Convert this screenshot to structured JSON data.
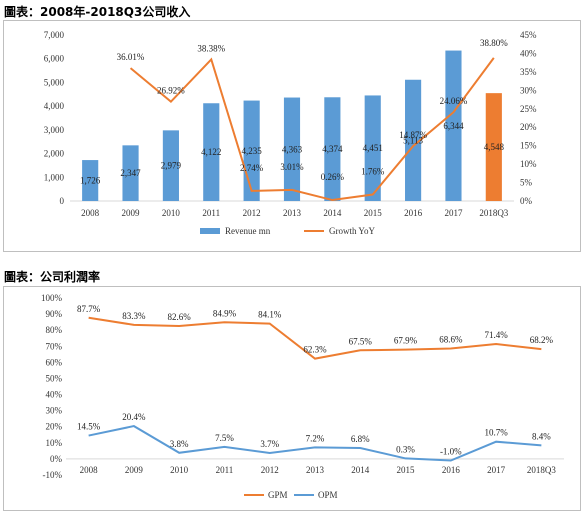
{
  "captions": {
    "chart1": "圖表：2008年-2018Q3公司收入",
    "chart2": "圖表：公司利潤率"
  },
  "chart_data": [
    {
      "type": "bar",
      "title": "",
      "categories": [
        "2008",
        "2009",
        "2010",
        "2011",
        "2012",
        "2013",
        "2014",
        "2015",
        "2016",
        "2017",
        "2018Q3"
      ],
      "series": [
        {
          "name": "Revenue mn",
          "type": "bar",
          "axis": "left",
          "values": [
            1726,
            2347,
            2979,
            4122,
            4235,
            4363,
            4374,
            4451,
            5113,
            6344,
            4548
          ],
          "labels": [
            "1,726",
            "2,347",
            "2,979",
            "4,122",
            "4,235",
            "4,363",
            "4,374",
            "4,451",
            "5,113",
            "6,344",
            "4,548"
          ],
          "color": "#5b9bd5",
          "highlight_index": 10,
          "highlight_color": "#ed7d31"
        },
        {
          "name": "Growth YoY",
          "type": "line",
          "axis": "right",
          "values": [
            null,
            36.01,
            26.92,
            38.38,
            2.74,
            3.01,
            0.26,
            1.76,
            14.87,
            24.06,
            38.8
          ],
          "labels": [
            "",
            "36.01%",
            "26.92%",
            "38.38%",
            "2.74%",
            "3.01%",
            "0.26%",
            "1.76%",
            "14.87%",
            "24.06%",
            "38.80%"
          ],
          "color": "#ed7d31"
        }
      ],
      "ylim_left": [
        0,
        7000
      ],
      "yticks_left": [
        "0",
        "1,000",
        "2,000",
        "3,000",
        "4,000",
        "5,000",
        "6,000",
        "7,000"
      ],
      "ylim_right": [
        0,
        45
      ],
      "yticks_right": [
        "0%",
        "5%",
        "10%",
        "15%",
        "20%",
        "25%",
        "30%",
        "35%",
        "40%",
        "45%"
      ],
      "grid": false,
      "legend_position": "bottom"
    },
    {
      "type": "line",
      "title": "",
      "categories": [
        "2008",
        "2009",
        "2010",
        "2011",
        "2012",
        "2013",
        "2014",
        "2015",
        "2016",
        "2017",
        "2018Q3"
      ],
      "series": [
        {
          "name": "GPM",
          "values": [
            87.7,
            83.3,
            82.6,
            84.9,
            84.1,
            62.3,
            67.5,
            67.9,
            68.6,
            71.4,
            68.2
          ],
          "labels": [
            "87.7%",
            "83.3%",
            "82.6%",
            "84.9%",
            "84.1%",
            "62.3%",
            "67.5%",
            "67.9%",
            "68.6%",
            "71.4%",
            "68.2%"
          ],
          "color": "#ed7d31"
        },
        {
          "name": "OPM",
          "values": [
            14.5,
            20.4,
            3.8,
            7.5,
            3.7,
            7.2,
            6.8,
            0.3,
            -1.0,
            10.7,
            8.4
          ],
          "labels": [
            "14.5%",
            "20.4%",
            "3.8%",
            "7.5%",
            "3.7%",
            "7.2%",
            "6.8%",
            "0.3%",
            "-1.0%",
            "10.7%",
            "8.4%"
          ],
          "color": "#5b9bd5"
        }
      ],
      "ylim": [
        -10,
        100
      ],
      "yticks": [
        "-10%",
        "0%",
        "10%",
        "20%",
        "30%",
        "40%",
        "50%",
        "60%",
        "70%",
        "80%",
        "90%",
        "100%"
      ],
      "grid": false,
      "legend_position": "bottom"
    }
  ]
}
